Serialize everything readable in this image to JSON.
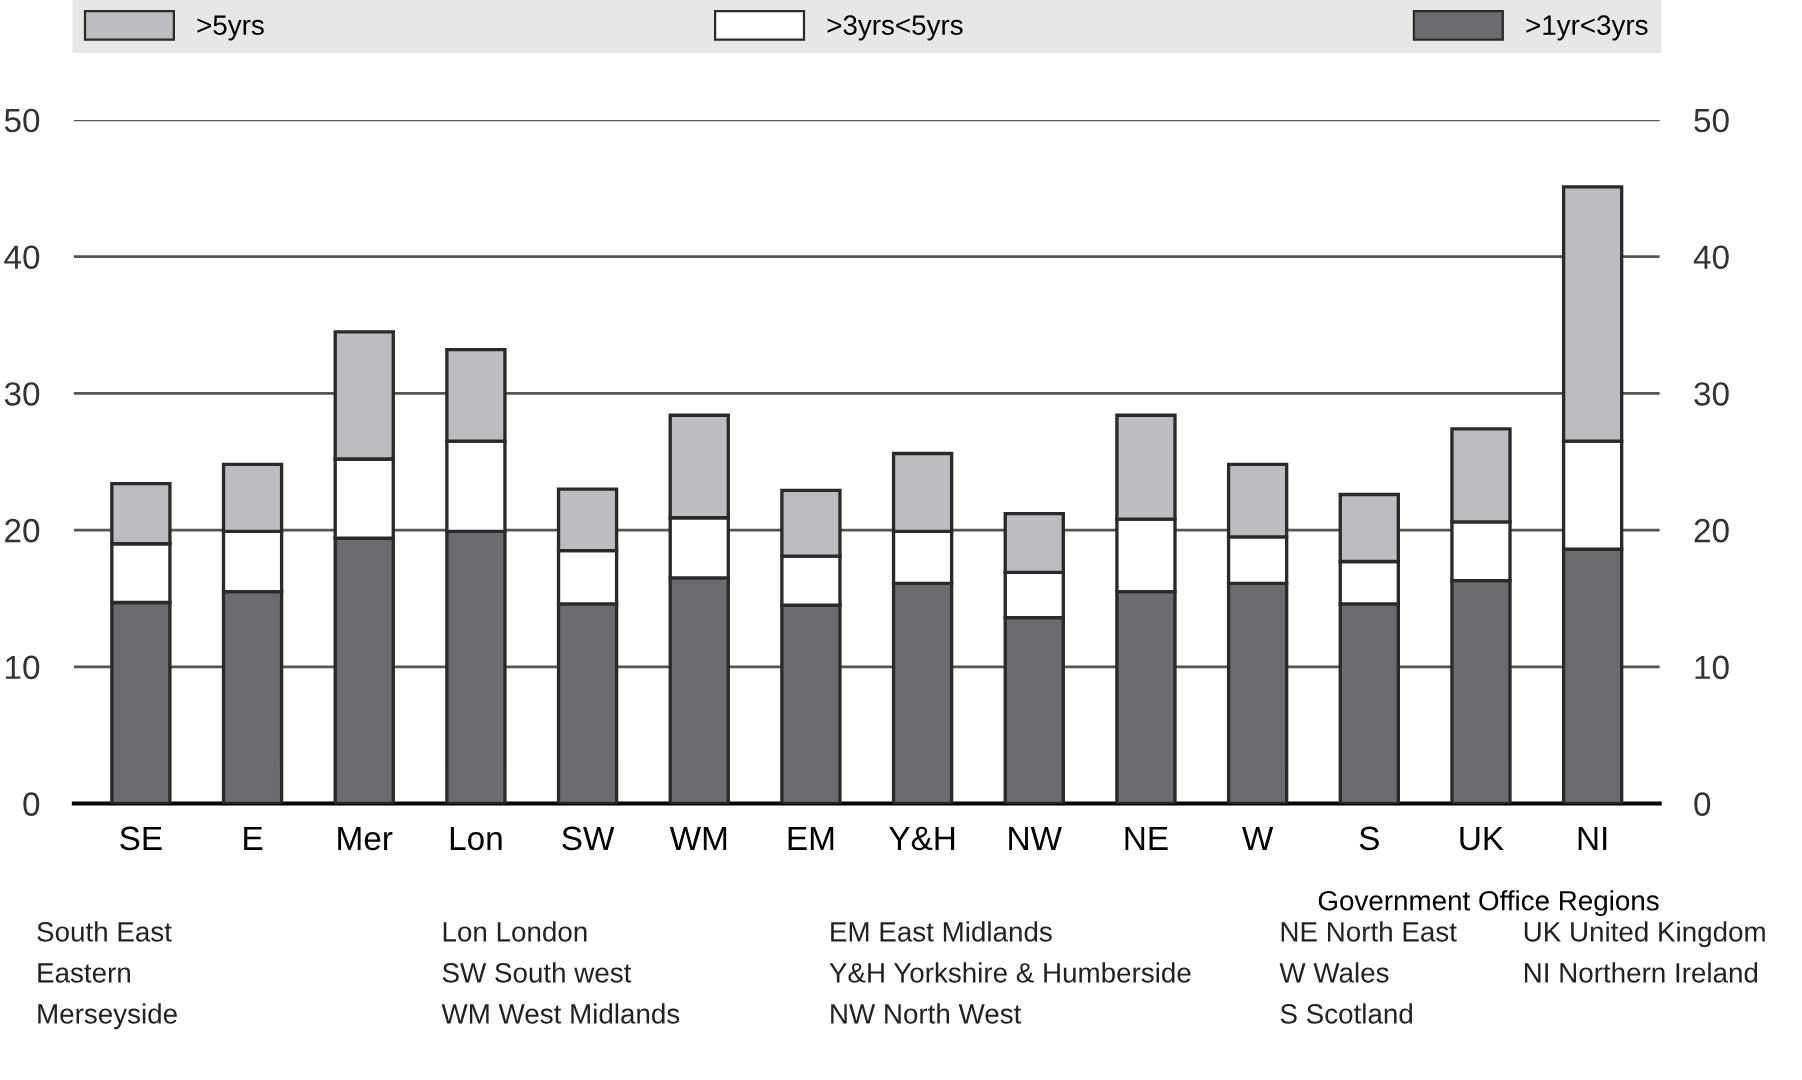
{
  "chart_data": {
    "type": "bar",
    "stacked": true,
    "categories": [
      "SE",
      "E",
      "Mer",
      "Lon",
      "SW",
      "WM",
      "EM",
      "Y&H",
      "NW",
      "NE",
      "W",
      "S",
      "UK",
      "NI"
    ],
    "series": [
      {
        "name": ">1yr<3yrs",
        "color": "#6b6c70",
        "values": [
          14.7,
          15.5,
          19.4,
          19.9,
          14.6,
          16.5,
          14.5,
          16.1,
          13.6,
          15.5,
          16.1,
          14.6,
          16.3,
          18.6
        ]
      },
      {
        "name": ">3yrs<5yrs",
        "color": "#ffffff",
        "values": [
          4.3,
          4.4,
          5.8,
          6.6,
          3.9,
          4.4,
          3.6,
          3.8,
          3.3,
          5.3,
          3.4,
          3.1,
          4.3,
          7.9
        ]
      },
      {
        "name": ">5yrs",
        "color": "#bcbdc0",
        "values": [
          4.4,
          4.9,
          9.3,
          6.7,
          4.5,
          7.5,
          4.8,
          5.7,
          4.3,
          7.6,
          5.3,
          4.9,
          6.8,
          18.6
        ]
      }
    ],
    "ylim": [
      0,
      50
    ],
    "yticks": [
      0,
      10,
      20,
      30,
      40,
      50
    ],
    "y2lim": [
      0,
      50
    ],
    "y2ticks": [
      0,
      10,
      20,
      30,
      40,
      50
    ],
    "xlabel": "Government Office Regions",
    "grid": "y",
    "legend": "top",
    "annotations": [
      "South East",
      "Eastern",
      "Merseyside",
      "Lon London",
      "SW South west",
      "WM West Midlands",
      "EM East Midlands",
      "Y&H Yorkshire & Humberside",
      "NW North West",
      "NE North East",
      "W Wales",
      "S Scotland",
      "UK United Kingdom",
      "NI Northern Ireland"
    ]
  }
}
